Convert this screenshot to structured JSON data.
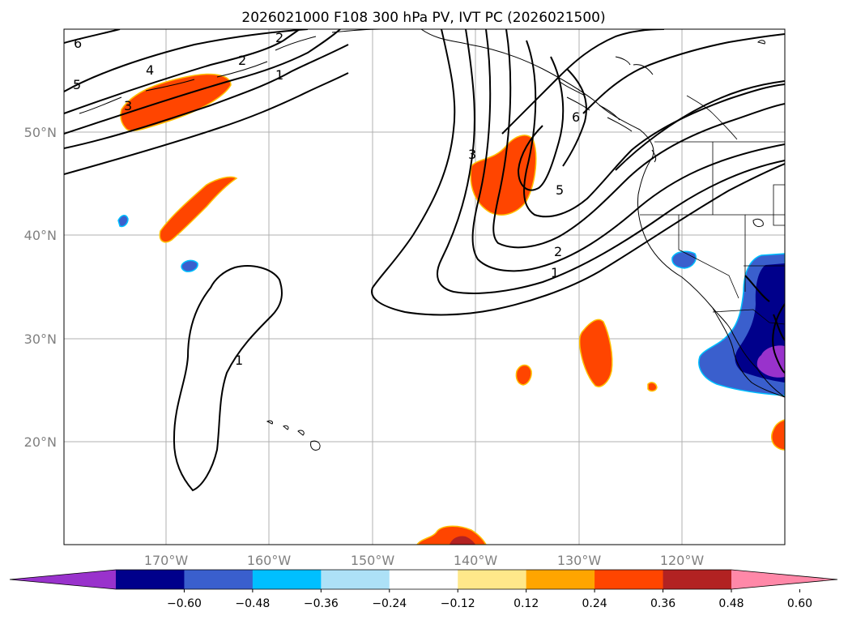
{
  "title": "2026021000 F108 300 hPa PV, IVT PC (2026021500)",
  "map": {
    "lat_labels": [
      "50°N",
      "40°N",
      "30°N",
      "20°N"
    ],
    "lon_labels": [
      "170°W",
      "160°W",
      "150°W",
      "140°W",
      "130°W",
      "120°W"
    ]
  },
  "contour_labels": [
    "6",
    "5",
    "4",
    "2",
    "1",
    "3",
    "2",
    "1",
    "3",
    "6",
    "5",
    "2",
    "1"
  ],
  "colorbar": {
    "colors": [
      "#9932CC",
      "#00008B",
      "#3A5FCD",
      "#00BFFF",
      "#ADE1F7",
      "#FFFFFF",
      "#FFE88A",
      "#FFA500",
      "#FF4500",
      "#B22222",
      "#FF88A8"
    ],
    "ticks": [
      "−0.60",
      "−0.48",
      "−0.36",
      "−0.24",
      "−0.12",
      "0.12",
      "0.24",
      "0.36",
      "0.48",
      "0.60"
    ]
  }
}
